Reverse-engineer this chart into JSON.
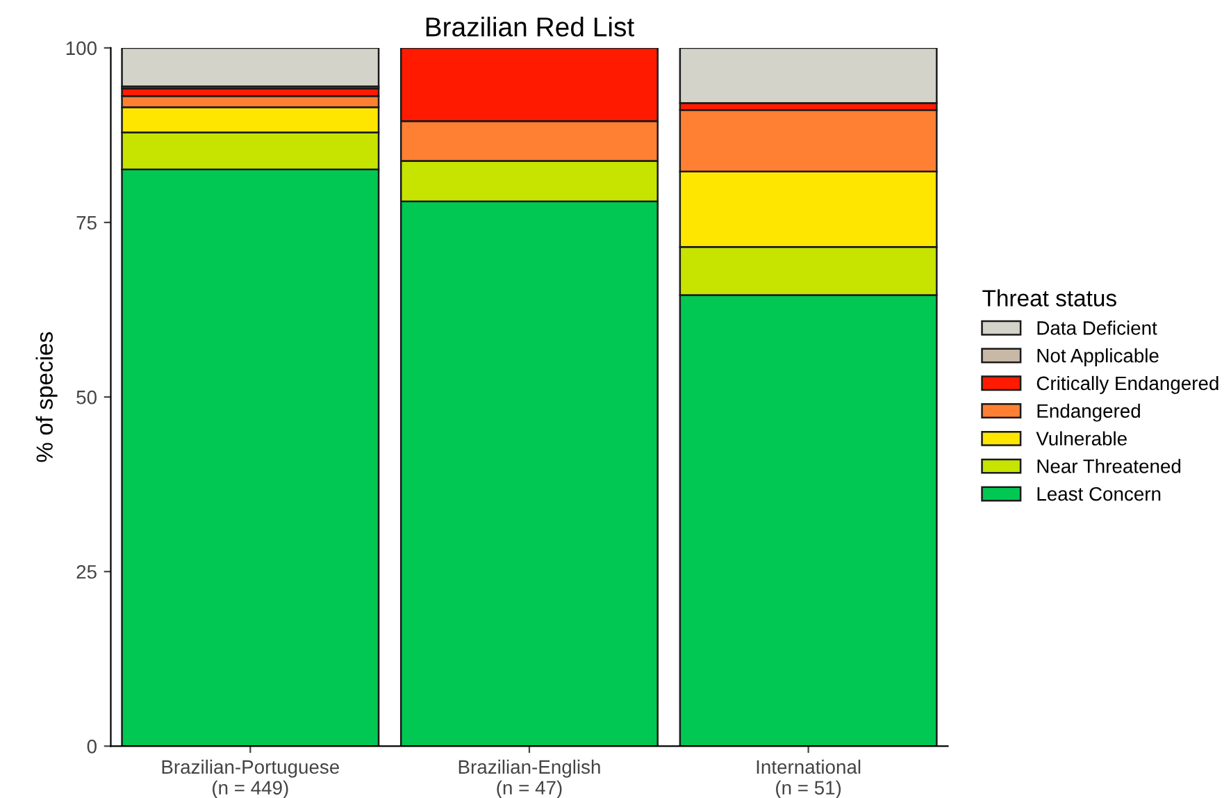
{
  "chart_data": {
    "type": "bar",
    "stacked": true,
    "title": "Brazilian Red List",
    "ylabel": "% of species",
    "legend_title": "Threat status",
    "legend": "right",
    "categories": [
      "Brazilian-Portuguese\n(n = 449)",
      "Brazilian-English\n(n = 47)",
      "International\n(n = 51)"
    ],
    "series": [
      {
        "name": "Least Concern",
        "color": "#00c853",
        "values": [
          82.6,
          78.0,
          64.6
        ]
      },
      {
        "name": "Near Threatened",
        "color": "#c6e400",
        "values": [
          5.3,
          5.8,
          6.9
        ]
      },
      {
        "name": "Vulnerable",
        "color": "#ffe600",
        "values": [
          3.6,
          null,
          10.8
        ]
      },
      {
        "name": "Endangered",
        "color": "#ff8033",
        "values": [
          1.6,
          5.7,
          8.8
        ]
      },
      {
        "name": "Critically Endangered",
        "color": "#ff1a00",
        "values": [
          1.1,
          10.5,
          1.0
        ]
      },
      {
        "name": "Not Applicable",
        "color": "#c8b8a6",
        "values": [
          0.3,
          null,
          null
        ]
      },
      {
        "name": "Data Deficient",
        "color": "#d3d3c9",
        "values": [
          5.5,
          null,
          7.9
        ]
      }
    ],
    "ylim": [
      0,
      100
    ],
    "yticks": [
      0,
      25,
      50,
      75,
      100
    ],
    "grid": false
  }
}
